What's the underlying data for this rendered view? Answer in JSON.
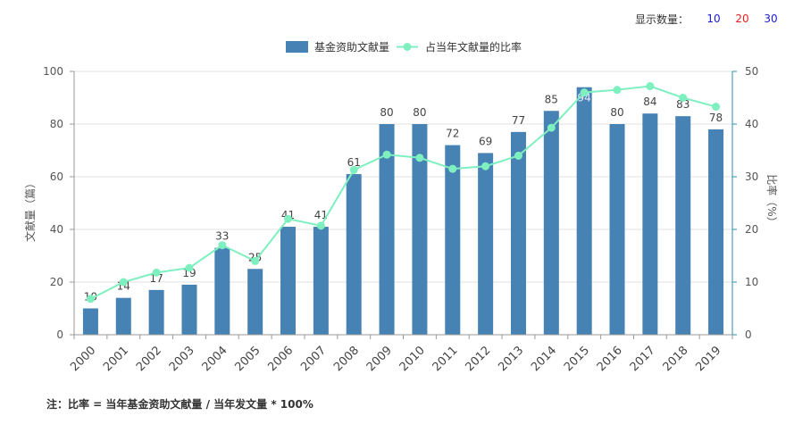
{
  "display_count": {
    "label": "显示数量：",
    "options": [
      {
        "text": "10",
        "color": "#1a1acc"
      },
      {
        "text": "20",
        "color": "#e02020"
      },
      {
        "text": "30",
        "color": "#1a1acc"
      }
    ]
  },
  "note": "注：比率 = 当年基金资助文献量 / 当年发文量 * 100%",
  "colors": {
    "bar": "#4682b4",
    "line": "#7ef0c0",
    "axis_right": "#2a8fa8",
    "grid": "#e0e0e0"
  },
  "chart_data": {
    "type": "bar",
    "categories": [
      "2000",
      "2001",
      "2002",
      "2003",
      "2004",
      "2005",
      "2006",
      "2007",
      "2008",
      "2009",
      "2010",
      "2011",
      "2012",
      "2013",
      "2014",
      "2015",
      "2016",
      "2017",
      "2018",
      "2019"
    ],
    "series": [
      {
        "name": "基金资助文献量",
        "type": "bar",
        "axis": "left",
        "values": [
          10,
          14,
          17,
          19,
          33,
          25,
          41,
          41,
          61,
          80,
          80,
          72,
          69,
          77,
          85,
          94,
          80,
          84,
          83,
          78
        ]
      },
      {
        "name": "占当年文献量的比率",
        "type": "line",
        "axis": "right",
        "values": [
          6.8,
          10.0,
          11.8,
          12.7,
          17.0,
          14.0,
          22.0,
          20.7,
          31.3,
          34.2,
          33.6,
          31.5,
          32.0,
          34.0,
          39.3,
          46.0,
          46.5,
          47.2,
          45.0,
          43.3
        ]
      }
    ],
    "ylabel": "文献量（篇）",
    "ylabel_right": "比率（%）",
    "ylim": [
      0,
      100
    ],
    "ylim_right": [
      0,
      50
    ],
    "yticks": [
      0,
      20,
      40,
      60,
      80,
      100
    ],
    "yticks_right": [
      0,
      10,
      20,
      30,
      40,
      50
    ],
    "grid": true,
    "legend_position": "top-center"
  }
}
